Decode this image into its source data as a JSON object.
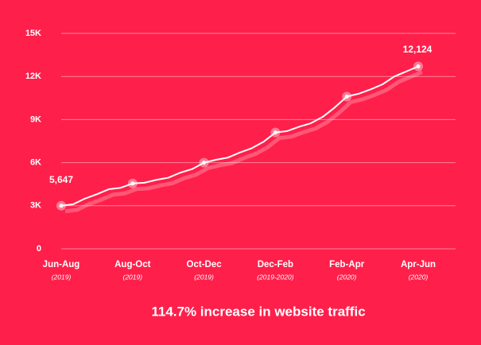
{
  "chart_data": {
    "type": "line",
    "title": "114.7% increase in website traffic",
    "annotations": [
      "5,647",
      "12,124"
    ],
    "categories": [
      "Jun-Aug",
      null,
      null,
      null,
      null,
      null,
      "Aug-Oct",
      null,
      null,
      null,
      null,
      null,
      "Oct-Dec",
      null,
      null,
      null,
      null,
      null,
      "Dec-Feb",
      null,
      null,
      null,
      null,
      null,
      "Feb-Apr",
      null,
      null,
      null,
      null,
      null,
      "Apr-Jun"
    ],
    "category_sublabels": [
      "(2019)",
      null,
      null,
      null,
      null,
      null,
      "(2019)",
      null,
      null,
      null,
      null,
      null,
      "(2019)",
      null,
      null,
      null,
      null,
      null,
      "(2019-2020)",
      null,
      null,
      null,
      null,
      null,
      "(2020)",
      null,
      null,
      null,
      null,
      null,
      "(2020)"
    ],
    "series": [
      {
        "name": "Website traffic",
        "color": "#ffffff",
        "values": [
          3000,
          3100,
          3500,
          3800,
          4150,
          4250,
          4550,
          4600,
          4800,
          4950,
          5300,
          5550,
          6000,
          6200,
          6350,
          6700,
          7000,
          7450,
          8100,
          8200,
          8500,
          8750,
          9200,
          9850,
          10600,
          10800,
          11100,
          11450,
          12000,
          12350,
          12700
        ]
      }
    ],
    "ylim": [
      0,
      15000
    ],
    "yticks": [
      0,
      {
        "value": 3000,
        "label": "3K"
      },
      {
        "value": 6000,
        "label": "6K"
      },
      {
        "value": 9000,
        "label": "9K"
      },
      {
        "value": 12000,
        "label": "12K"
      },
      {
        "value": 15000,
        "label": "15K"
      }
    ],
    "grid": true,
    "background": "#ff1f4b"
  }
}
